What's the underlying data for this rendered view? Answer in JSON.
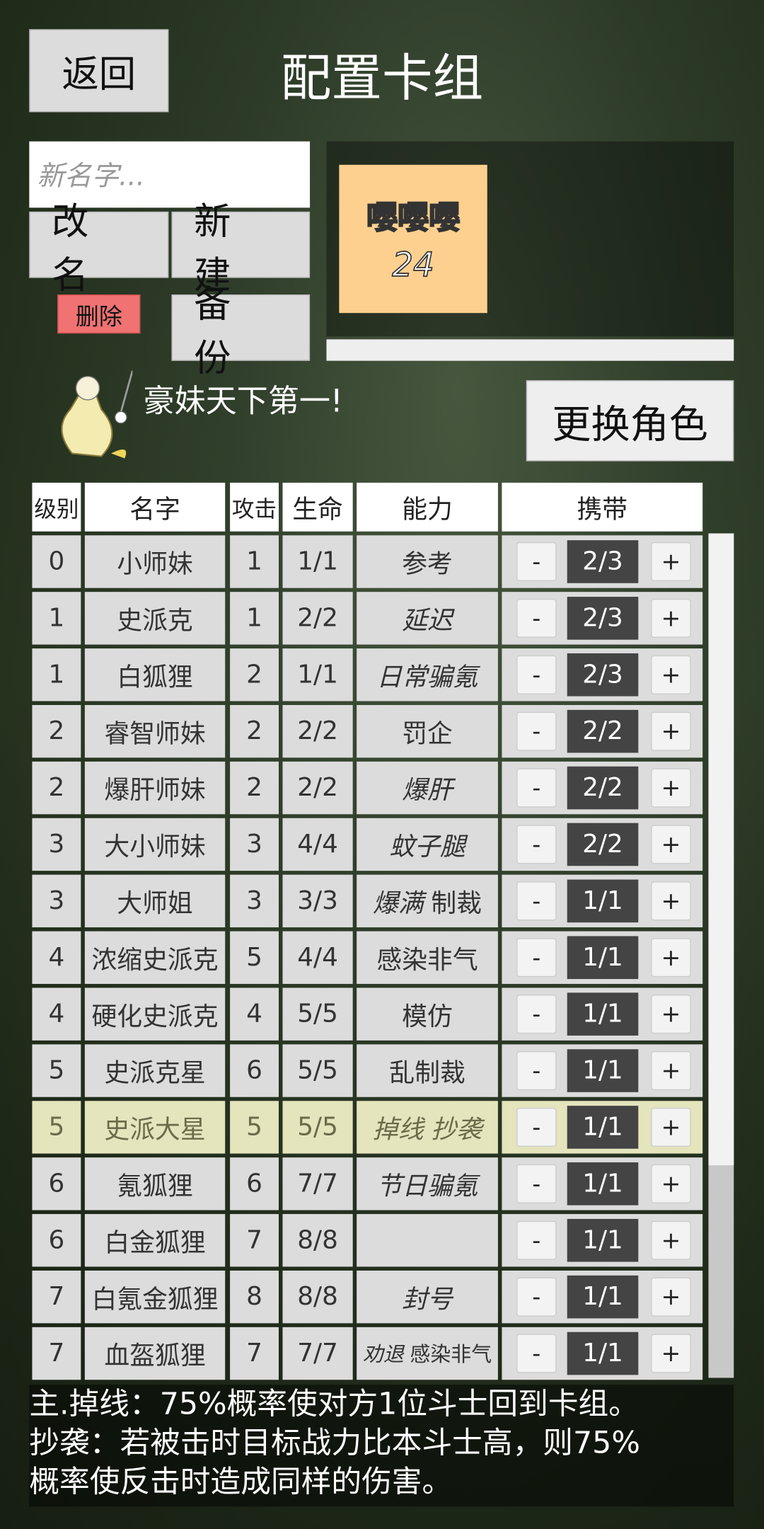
{
  "header": {
    "back": "返回",
    "title": "配置卡组"
  },
  "deck_controls": {
    "name_placeholder": "新名字...",
    "rename": "改名",
    "new": "新建",
    "delete": "删除",
    "backup": "备份"
  },
  "deck_card": {
    "name": "嘤嘤嘤",
    "count": 24
  },
  "character": {
    "slogan": "豪妹天下第一!",
    "change": "更换角色"
  },
  "table": {
    "columns": [
      "级别",
      "名字",
      "攻击",
      "生命",
      "能力",
      "携带"
    ],
    "controls": {
      "minus": "-",
      "plus": "+"
    },
    "highlighted_row": 10,
    "rows": [
      {
        "level": 0,
        "name": "小师妹",
        "attack": 1,
        "hp": "1/1",
        "ability": [
          {
            "text": "参考",
            "italic": false
          }
        ],
        "carry": "2/3"
      },
      {
        "level": 1,
        "name": "史派克",
        "attack": 1,
        "hp": "2/2",
        "ability": [
          {
            "text": "延迟",
            "italic": true
          }
        ],
        "carry": "2/3"
      },
      {
        "level": 1,
        "name": "白狐狸",
        "attack": 2,
        "hp": "1/1",
        "ability": [
          {
            "text": "日常骗氪",
            "italic": true
          }
        ],
        "carry": "2/3"
      },
      {
        "level": 2,
        "name": "睿智师妹",
        "attack": 2,
        "hp": "2/2",
        "ability": [
          {
            "text": "罚企",
            "italic": false
          }
        ],
        "carry": "2/2"
      },
      {
        "level": 2,
        "name": "爆肝师妹",
        "attack": 2,
        "hp": "2/2",
        "ability": [
          {
            "text": "爆肝",
            "italic": true
          }
        ],
        "carry": "2/2"
      },
      {
        "level": 3,
        "name": "大小师妹",
        "attack": 3,
        "hp": "4/4",
        "ability": [
          {
            "text": "蚊子腿",
            "italic": true
          }
        ],
        "carry": "2/2"
      },
      {
        "level": 3,
        "name": "大师姐",
        "attack": 3,
        "hp": "3/3",
        "ability": [
          {
            "text": "爆满",
            "italic": true
          },
          {
            "text": "制裁",
            "italic": false
          }
        ],
        "carry": "1/1"
      },
      {
        "level": 4,
        "name": "浓缩史派克",
        "attack": 5,
        "hp": "4/4",
        "ability": [
          {
            "text": "感染非气",
            "italic": false
          }
        ],
        "carry": "1/1"
      },
      {
        "level": 4,
        "name": "硬化史派克",
        "attack": 4,
        "hp": "5/5",
        "ability": [
          {
            "text": "模仿",
            "italic": false
          }
        ],
        "carry": "1/1"
      },
      {
        "level": 5,
        "name": "史派克星",
        "attack": 6,
        "hp": "5/5",
        "ability": [
          {
            "text": "乱制裁",
            "italic": false
          }
        ],
        "carry": "1/1"
      },
      {
        "level": 5,
        "name": "史派大星",
        "attack": 5,
        "hp": "5/5",
        "ability": [
          {
            "text": "掉线",
            "italic": true
          },
          {
            "text": "抄袭",
            "italic": true
          }
        ],
        "carry": "1/1"
      },
      {
        "level": 6,
        "name": "氪狐狸",
        "attack": 6,
        "hp": "7/7",
        "ability": [
          {
            "text": "节日骗氪",
            "italic": true
          }
        ],
        "carry": "1/1"
      },
      {
        "level": 6,
        "name": "白金狐狸",
        "attack": 7,
        "hp": "8/8",
        "ability": [],
        "carry": "1/1"
      },
      {
        "level": 7,
        "name": "白氪金狐狸",
        "attack": 8,
        "hp": "8/8",
        "ability": [
          {
            "text": "封号",
            "italic": true
          }
        ],
        "carry": "1/1"
      },
      {
        "level": 7,
        "name": "血盔狐狸",
        "attack": 7,
        "hp": "7/7",
        "ability": [
          {
            "text": "劝退",
            "italic": true
          },
          {
            "text": "感染非气",
            "italic": false
          }
        ],
        "carry": "1/1"
      }
    ]
  },
  "description": {
    "lines": [
      "主.掉线：75%概率使对方1位斗士回到卡组。",
      "抄袭：若被击时目标战力比本斗士高，则75%",
      "概率使反击时造成同样的伤害。"
    ]
  }
}
